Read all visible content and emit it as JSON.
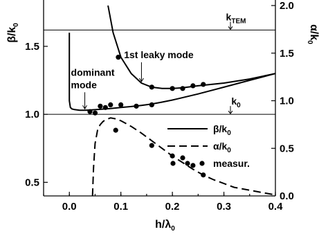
{
  "chart_data": {
    "type": "line",
    "xlabel": "h/λ",
    "xlabel_sub": "0",
    "ylabel_left": "β/k",
    "ylabel_left_sub": "0",
    "ylabel_right": "α/k",
    "ylabel_right_sub": "0",
    "xlim": [
      -0.05,
      0.4
    ],
    "ylim_left": [
      0.4,
      1.8
    ],
    "ylim_right": [
      0.0,
      2.0
    ],
    "x_ticks": [
      0.0,
      0.1,
      0.2,
      0.3,
      0.4
    ],
    "x_tick_labels": [
      "0.0",
      "0.1",
      "0.2",
      "0.3",
      "0.4"
    ],
    "y_left_ticks": [
      0.5,
      1.0,
      1.5
    ],
    "y_left_tick_labels": [
      "0.5",
      "1.0",
      "1.5"
    ],
    "y_right_ticks": [
      0.0,
      0.5,
      1.0,
      1.5,
      2.0
    ],
    "y_right_tick_labels": [
      "0.0",
      "0.5",
      "1.0",
      "1.5",
      "2.0"
    ],
    "reference_lines": [
      {
        "axis": "left",
        "y": 1.0,
        "label": "k",
        "label_sub": "0",
        "label_at_x": 0.31
      },
      {
        "axis": "left",
        "y": 1.62,
        "label": "k",
        "label_sub": "TEM",
        "label_at_x": 0.31
      }
    ],
    "series": [
      {
        "name": "β/k0",
        "axis": "left",
        "style": "solid",
        "label": "dominant mode",
        "x": [
          0.0,
          0.0,
          0.002,
          0.005,
          0.01,
          0.02,
          0.03,
          0.04,
          0.06,
          0.08,
          0.1,
          0.12,
          0.14,
          0.16,
          0.18,
          0.2,
          0.25,
          0.3,
          0.35,
          0.4
        ],
        "y": [
          1.6,
          1.1,
          1.05,
          1.04,
          1.035,
          1.03,
          1.03,
          1.032,
          1.037,
          1.043,
          1.05,
          1.057,
          1.066,
          1.076,
          1.09,
          1.105,
          1.15,
          1.2,
          1.25,
          1.3
        ]
      },
      {
        "name": "β/k0",
        "axis": "left",
        "style": "solid",
        "label": "1st leaky mode",
        "x": [
          0.075,
          0.085,
          0.1,
          0.12,
          0.14,
          0.16,
          0.18,
          0.2,
          0.22,
          0.25,
          0.3,
          0.35,
          0.4
        ],
        "y": [
          1.8,
          1.6,
          1.42,
          1.3,
          1.23,
          1.2,
          1.19,
          1.19,
          1.195,
          1.21,
          1.23,
          1.26,
          1.3
        ]
      },
      {
        "name": "α/k0",
        "axis": "right",
        "style": "dashed",
        "x": [
          0.045,
          0.047,
          0.05,
          0.055,
          0.06,
          0.065,
          0.07,
          0.08,
          0.09,
          0.1,
          0.12,
          0.14,
          0.16,
          0.18,
          0.2,
          0.22,
          0.24,
          0.26,
          0.28,
          0.3,
          0.32,
          0.34,
          0.36,
          0.38,
          0.4
        ],
        "y": [
          0.0,
          0.3,
          0.55,
          0.7,
          0.75,
          0.78,
          0.8,
          0.82,
          0.81,
          0.79,
          0.73,
          0.66,
          0.58,
          0.5,
          0.42,
          0.35,
          0.28,
          0.22,
          0.17,
          0.13,
          0.09,
          0.07,
          0.05,
          0.03,
          0.01
        ]
      }
    ],
    "measured": {
      "name": "measur.",
      "beta_points": [
        {
          "x": 0.04,
          "y": 1.02
        },
        {
          "x": 0.05,
          "y": 1.01
        },
        {
          "x": 0.06,
          "y": 1.06
        },
        {
          "x": 0.07,
          "y": 1.05
        },
        {
          "x": 0.08,
          "y": 1.07
        },
        {
          "x": 0.1,
          "y": 1.07
        },
        {
          "x": 0.13,
          "y": 1.06
        },
        {
          "x": 0.16,
          "y": 1.07
        },
        {
          "x": 0.095,
          "y": 1.42
        },
        {
          "x": 0.16,
          "y": 1.2
        },
        {
          "x": 0.2,
          "y": 1.19
        },
        {
          "x": 0.22,
          "y": 1.19
        },
        {
          "x": 0.24,
          "y": 1.21
        },
        {
          "x": 0.26,
          "y": 1.22
        }
      ],
      "alpha_points": [
        {
          "x": 0.09,
          "y": 0.69
        },
        {
          "x": 0.16,
          "y": 0.53
        },
        {
          "x": 0.2,
          "y": 0.42
        },
        {
          "x": 0.22,
          "y": 0.4
        },
        {
          "x": 0.24,
          "y": 0.32
        },
        {
          "x": 0.26,
          "y": 0.22
        }
      ]
    },
    "annotations": [
      {
        "text": "1st leaky mode",
        "at_x": 0.14,
        "at_y": 1.23
      },
      {
        "text": "dominant",
        "at_x": 0.03,
        "at_y": 1.03
      },
      {
        "text": "mode",
        "at_x": 0.03,
        "at_y": 1.03
      }
    ],
    "legend": {
      "placement": "middle-right",
      "entries": [
        {
          "label": "β/k",
          "label_sub": "0",
          "style": "solid"
        },
        {
          "label": "α/k",
          "label_sub": "0",
          "style": "dashed"
        },
        {
          "label": "measur.",
          "style": "dots"
        }
      ]
    },
    "grid": false
  }
}
